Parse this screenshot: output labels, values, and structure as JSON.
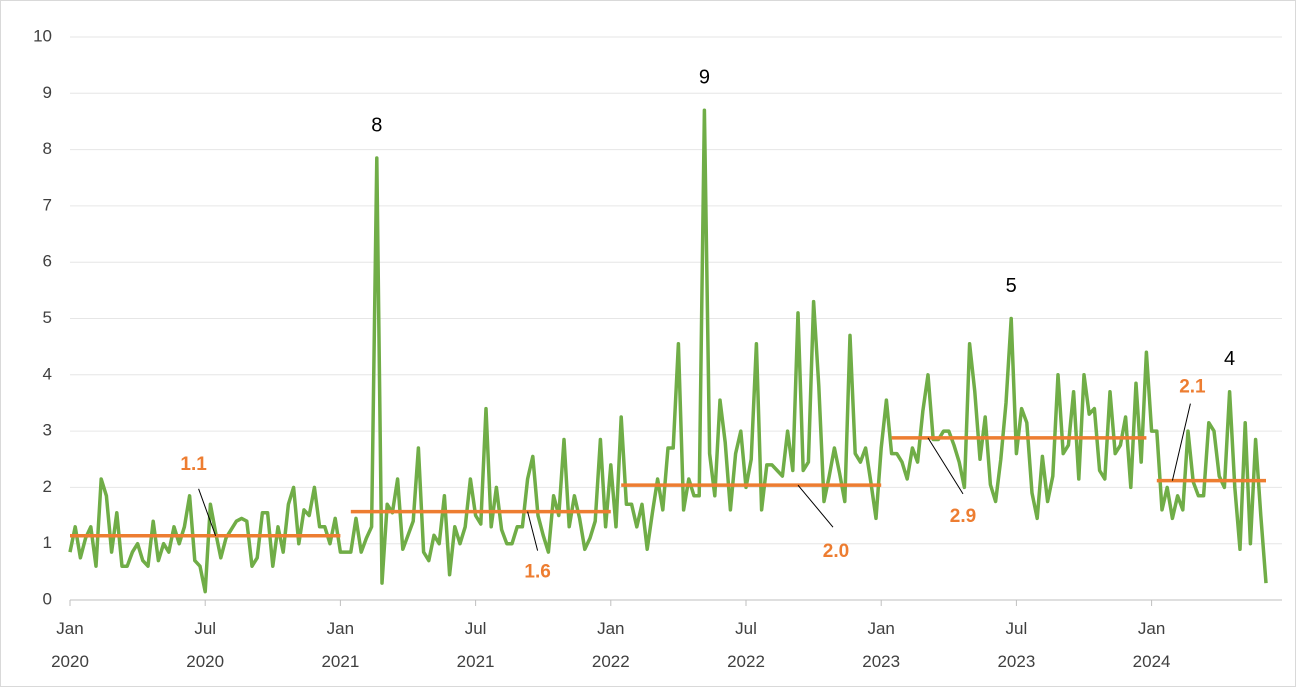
{
  "chart_data": {
    "type": "line",
    "categories": [
      "Jan 2020",
      null,
      null,
      null,
      null,
      null,
      null,
      null,
      null,
      null,
      null,
      null,
      null,
      null,
      null,
      null,
      null,
      null,
      null,
      null,
      null,
      null,
      null,
      null,
      null,
      null,
      "Jul 2020",
      null,
      null,
      null,
      null,
      null,
      null,
      null,
      null,
      null,
      null,
      null,
      null,
      null,
      null,
      null,
      null,
      null,
      null,
      null,
      null,
      null,
      null,
      null,
      null,
      null,
      "Jan 2021",
      null,
      null,
      null,
      null,
      null,
      null,
      null,
      null,
      null,
      null,
      null,
      null,
      null,
      null,
      null,
      null,
      null,
      null,
      null,
      null,
      null,
      null,
      null,
      null,
      null,
      "Jul 2021",
      null,
      null,
      null,
      null,
      null,
      null,
      null,
      null,
      null,
      null,
      null,
      null,
      null,
      null,
      null,
      null,
      null,
      null,
      null,
      null,
      null,
      null,
      null,
      null,
      null,
      "Jan 2022",
      null,
      null,
      null,
      null,
      null,
      null,
      null,
      null,
      null,
      null,
      null,
      null,
      null,
      null,
      null,
      null,
      null,
      null,
      null,
      null,
      null,
      null,
      null,
      null,
      null,
      "Jul 2022",
      null,
      null,
      null,
      null,
      null,
      null,
      null,
      null,
      null,
      null,
      null,
      null,
      null,
      null,
      null,
      null,
      null,
      null,
      null,
      null,
      null,
      null,
      null,
      null,
      null,
      "Jan 2023",
      null,
      null,
      null,
      null,
      null,
      null,
      null,
      null,
      null,
      null,
      null,
      null,
      null,
      null,
      null,
      null,
      null,
      null,
      null,
      null,
      null,
      null,
      null,
      null,
      null,
      "Jul 2023",
      null,
      null,
      null,
      null,
      null,
      null,
      null,
      null,
      null,
      null,
      null,
      null,
      null,
      null,
      null,
      null,
      null,
      null,
      null,
      null,
      null,
      null,
      null,
      null,
      null,
      "Jan 2024",
      null,
      null,
      null,
      null,
      null,
      null,
      null,
      null,
      null,
      null,
      null,
      null,
      null,
      null,
      null,
      null,
      null,
      null,
      null,
      null,
      null,
      null
    ],
    "series": [
      {
        "color": "#70ad47",
        "values": [
          0.85,
          1.3,
          0.75,
          1.1,
          1.3,
          0.6,
          2.15,
          1.85,
          0.85,
          1.55,
          0.6,
          0.6,
          0.85,
          1.0,
          0.7,
          0.6,
          1.4,
          0.7,
          1.0,
          0.85,
          1.3,
          1.0,
          1.3,
          1.85,
          0.7,
          0.6,
          0.15,
          1.7,
          1.2,
          0.75,
          1.1,
          1.25,
          1.4,
          1.45,
          1.4,
          0.6,
          0.75,
          1.55,
          1.55,
          0.6,
          1.3,
          0.85,
          1.7,
          2.0,
          1.0,
          1.6,
          1.5,
          2.0,
          1.3,
          1.3,
          1.0,
          1.45,
          0.85,
          0.85,
          0.85,
          1.45,
          0.85,
          1.1,
          1.3,
          7.85,
          0.3,
          1.7,
          1.55,
          2.15,
          0.9,
          1.15,
          1.4,
          2.7,
          0.85,
          0.7,
          1.15,
          1.0,
          1.85,
          0.45,
          1.3,
          1.0,
          1.3,
          2.15,
          1.5,
          1.35,
          3.4,
          1.3,
          2.0,
          1.25,
          1.0,
          1.0,
          1.3,
          1.3,
          2.15,
          2.55,
          1.5,
          1.15,
          0.85,
          1.85,
          1.5,
          2.85,
          1.3,
          1.85,
          1.45,
          0.9,
          1.1,
          1.4,
          2.85,
          1.3,
          2.4,
          1.3,
          3.25,
          1.7,
          1.7,
          1.3,
          1.7,
          0.9,
          1.55,
          2.15,
          1.6,
          2.7,
          2.7,
          4.55,
          1.6,
          2.15,
          1.85,
          1.85,
          8.7,
          2.6,
          1.85,
          3.55,
          2.8,
          1.6,
          2.6,
          3.0,
          2.0,
          2.5,
          4.55,
          1.6,
          2.4,
          2.4,
          2.3,
          2.2,
          3.0,
          2.3,
          5.1,
          2.3,
          2.45,
          5.3,
          3.8,
          1.75,
          2.2,
          2.7,
          2.25,
          1.75,
          4.7,
          2.6,
          2.45,
          2.7,
          2.1,
          1.45,
          2.7,
          3.55,
          2.6,
          2.6,
          2.45,
          2.15,
          2.7,
          2.45,
          3.35,
          4.0,
          2.85,
          2.85,
          3.0,
          3.0,
          2.75,
          2.45,
          2.0,
          4.55,
          3.7,
          2.5,
          3.25,
          2.05,
          1.75,
          2.5,
          3.5,
          5.0,
          2.6,
          3.4,
          3.15,
          1.9,
          1.45,
          2.55,
          1.75,
          2.2,
          4.0,
          2.6,
          2.75,
          3.7,
          2.15,
          4.0,
          3.3,
          3.4,
          2.3,
          2.15,
          3.7,
          2.6,
          2.75,
          3.25,
          2.0,
          3.85,
          2.45,
          4.4,
          3.0,
          3.0,
          1.6,
          2.0,
          1.45,
          1.85,
          1.6,
          3.0,
          2.1,
          1.85,
          1.85,
          3.15,
          3.0,
          2.2,
          2.0,
          3.7,
          2.0,
          0.9,
          3.15,
          1.0,
          2.85,
          1.5,
          0.3
        ],
        "value_labels": [
          null,
          null,
          null,
          null,
          null,
          null,
          null,
          null,
          null,
          null,
          null,
          null,
          null,
          null,
          null,
          null,
          null,
          null,
          null,
          null,
          null,
          null,
          null,
          null,
          null,
          null,
          null,
          null,
          null,
          null,
          null,
          null,
          null,
          null,
          null,
          null,
          null,
          null,
          null,
          null,
          null,
          null,
          null,
          null,
          null,
          null,
          null,
          null,
          null,
          null,
          null,
          null,
          null,
          null,
          null,
          null,
          null,
          null,
          null,
          "8",
          null,
          null,
          null,
          null,
          null,
          null,
          null,
          null,
          null,
          null,
          null,
          null,
          null,
          null,
          null,
          null,
          null,
          null,
          null,
          null,
          null,
          null,
          null,
          null,
          null,
          null,
          null,
          null,
          null,
          null,
          null,
          null,
          null,
          null,
          null,
          null,
          null,
          null,
          null,
          null,
          null,
          null,
          null,
          null,
          null,
          null,
          null,
          null,
          null,
          null,
          null,
          null,
          null,
          null,
          null,
          null,
          null,
          null,
          null,
          null,
          null,
          null,
          "9",
          null,
          null,
          null,
          null,
          null,
          null,
          null,
          null,
          null,
          null,
          null,
          null,
          null,
          null,
          null,
          null,
          null,
          null,
          null,
          null,
          null,
          null,
          null,
          null,
          null,
          null,
          null,
          null,
          null,
          null,
          null,
          null,
          null,
          null,
          null,
          null,
          null,
          null,
          null,
          null,
          null,
          null,
          null,
          null,
          null,
          null,
          null,
          null,
          null,
          null,
          null,
          null,
          null,
          null,
          null,
          null,
          null,
          null,
          "5",
          null,
          null,
          null,
          null,
          null,
          null,
          null,
          null,
          null,
          null,
          null,
          null,
          null,
          null,
          null,
          null,
          null,
          null,
          null,
          null,
          null,
          null,
          null,
          null,
          null,
          null,
          null,
          null,
          null,
          null,
          null,
          null,
          null,
          null,
          null,
          null,
          null,
          null,
          null,
          null,
          null,
          "4",
          null,
          null,
          null,
          null,
          null,
          null,
          null
        ]
      },
      {
        "color": "#ed7d31",
        "values": [
          1.14,
          1.14,
          1.14,
          1.14,
          1.14,
          1.14,
          1.14,
          1.14,
          1.14,
          1.14,
          1.14,
          1.14,
          1.14,
          1.14,
          1.14,
          1.14,
          1.14,
          1.14,
          1.14,
          1.14,
          1.14,
          1.14,
          1.14,
          1.14,
          1.14,
          1.14,
          1.14,
          1.14,
          1.14,
          1.14,
          1.14,
          1.14,
          1.14,
          1.14,
          1.14,
          1.14,
          1.14,
          1.14,
          1.14,
          1.14,
          1.14,
          1.14,
          1.14,
          1.14,
          1.14,
          1.14,
          1.14,
          1.14,
          1.14,
          1.14,
          1.14,
          1.14,
          1.14,
          null,
          1.57,
          1.57,
          1.57,
          1.57,
          1.57,
          1.57,
          1.57,
          1.57,
          1.57,
          1.57,
          1.57,
          1.57,
          1.57,
          1.57,
          1.57,
          1.57,
          1.57,
          1.57,
          1.57,
          1.57,
          1.57,
          1.57,
          1.57,
          1.57,
          1.57,
          1.57,
          1.57,
          1.57,
          1.57,
          1.57,
          1.57,
          1.57,
          1.57,
          1.57,
          1.57,
          1.57,
          1.57,
          1.57,
          1.57,
          1.57,
          1.57,
          1.57,
          1.57,
          1.57,
          1.57,
          1.57,
          1.57,
          1.57,
          1.57,
          1.57,
          1.57,
          null,
          2.04,
          2.04,
          2.04,
          2.04,
          2.04,
          2.04,
          2.04,
          2.04,
          2.04,
          2.04,
          2.04,
          2.04,
          2.04,
          2.04,
          2.04,
          2.04,
          2.04,
          2.04,
          2.04,
          2.04,
          2.04,
          2.04,
          2.04,
          2.04,
          2.04,
          2.04,
          2.04,
          2.04,
          2.04,
          2.04,
          2.04,
          2.04,
          2.04,
          2.04,
          2.04,
          2.04,
          2.04,
          2.04,
          2.04,
          2.04,
          2.04,
          2.04,
          2.04,
          2.04,
          2.04,
          2.04,
          2.04,
          2.04,
          2.04,
          2.04,
          2.04,
          null,
          2.88,
          2.88,
          2.88,
          2.88,
          2.88,
          2.88,
          2.88,
          2.88,
          2.88,
          2.88,
          2.88,
          2.88,
          2.88,
          2.88,
          2.88,
          2.88,
          2.88,
          2.88,
          2.88,
          2.88,
          2.88,
          2.88,
          2.88,
          2.88,
          2.88,
          2.88,
          2.88,
          2.88,
          2.88,
          2.88,
          2.88,
          2.88,
          2.88,
          2.88,
          2.88,
          2.88,
          2.88,
          2.88,
          2.88,
          2.88,
          2.88,
          2.88,
          2.88,
          2.88,
          2.88,
          2.88,
          2.88,
          2.88,
          2.88,
          2.88,
          null,
          2.12,
          2.12,
          2.12,
          2.12,
          2.12,
          2.12,
          2.12,
          2.12,
          2.12,
          2.12,
          2.12,
          2.12,
          2.12,
          2.12,
          2.12,
          2.12,
          2.12,
          2.12,
          2.12,
          2.12,
          2.12,
          2.12
        ],
        "value_labels": [
          null,
          null,
          null,
          null,
          null,
          null,
          null,
          null,
          null,
          null,
          null,
          null,
          null,
          null,
          null,
          null,
          null,
          null,
          null,
          null,
          null,
          null,
          null,
          null,
          null,
          null,
          null,
          null,
          "1.1",
          null,
          null,
          null,
          null,
          null,
          null,
          null,
          null,
          null,
          null,
          null,
          null,
          null,
          null,
          null,
          null,
          null,
          null,
          null,
          null,
          null,
          null,
          null,
          null,
          null,
          null,
          null,
          null,
          null,
          null,
          null,
          null,
          null,
          null,
          null,
          null,
          null,
          null,
          null,
          null,
          null,
          null,
          null,
          null,
          null,
          null,
          null,
          null,
          null,
          null,
          null,
          null,
          null,
          null,
          null,
          null,
          null,
          null,
          null,
          "1.6",
          null,
          null,
          null,
          null,
          null,
          null,
          null,
          null,
          null,
          null,
          null,
          null,
          null,
          null,
          null,
          null,
          null,
          null,
          null,
          null,
          null,
          null,
          null,
          null,
          null,
          null,
          null,
          null,
          null,
          null,
          null,
          null,
          null,
          null,
          null,
          null,
          null,
          null,
          null,
          null,
          null,
          null,
          null,
          null,
          null,
          null,
          null,
          null,
          null,
          null,
          null,
          "2.0",
          null,
          null,
          null,
          null,
          null,
          null,
          null,
          null,
          null,
          null,
          null,
          null,
          null,
          null,
          null,
          null,
          null,
          null,
          null,
          null,
          null,
          null,
          null,
          null,
          "2.9",
          null,
          null,
          null,
          null,
          null,
          null,
          null,
          null,
          null,
          null,
          null,
          null,
          null,
          null,
          null,
          null,
          null,
          null,
          null,
          null,
          null,
          null,
          null,
          null,
          null,
          null,
          null,
          null,
          null,
          null,
          null,
          null,
          null,
          null,
          null,
          null,
          null,
          null,
          null,
          null,
          null,
          null,
          null,
          null,
          null,
          null,
          "2.1",
          null,
          null,
          null,
          null,
          null,
          null,
          null,
          null,
          null,
          null,
          null,
          null,
          null,
          null,
          null,
          null,
          null,
          null
        ]
      }
    ],
    "ylim": [
      0,
      10
    ],
    "yticks": [
      0,
      1,
      2,
      3,
      4,
      5,
      6,
      7,
      8,
      9,
      10
    ],
    "grid": true
  }
}
